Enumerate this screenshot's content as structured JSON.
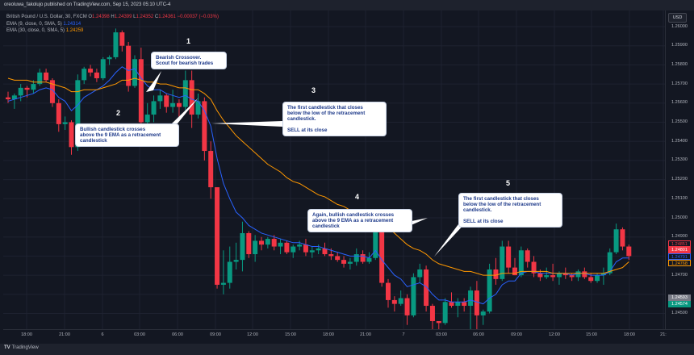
{
  "header": {
    "publisher_line": "oreoluwa_fakolujo published on TradingView.com, Sep 15, 2023 05:10 UTC-4"
  },
  "legend": {
    "symbol": "British Pound / U.S. Dollar, 30, FXCM",
    "o_label": "O",
    "o": "1.24398",
    "h_label": "H",
    "h": "1.24399",
    "l_label": "L",
    "l": "1.24352",
    "c_label": "C",
    "c": "1.24361",
    "change": "−0.00037 (−0.03%)",
    "ema9_label": "EMA (9, close, 0, SMA, 5)",
    "ema9_value": "1.24314",
    "ema30_label": "EMA (30, close, 0, SMA, 5)",
    "ema30_value": "1.24259"
  },
  "price_scale": {
    "currency": "USD",
    "ticks": [
      "1.26000",
      "1.25900",
      "1.25800",
      "1.25700",
      "1.25600",
      "1.25500",
      "1.25400",
      "1.25300",
      "1.25200",
      "1.25100",
      "1.25000",
      "1.24900",
      "1.24700",
      "1.24500"
    ],
    "badges": [
      {
        "label": "1.24851",
        "kind": "outline-red"
      },
      {
        "label": "1.24801",
        "kind": "solid-red"
      },
      {
        "label": "1.24791",
        "kind": "outline-blue"
      },
      {
        "label": "1.24768",
        "kind": "outline-orange"
      },
      {
        "label": "1.24593",
        "kind": "solid-gray"
      },
      {
        "label": "1.24574",
        "kind": "solid-green"
      }
    ]
  },
  "time_scale": {
    "labels": [
      "18:00",
      "21:00",
      "6",
      "03:00",
      "06:00",
      "09:00",
      "12:00",
      "15:00",
      "18:00",
      "21:00",
      "7",
      "03:00",
      "06:00",
      "09:00",
      "12:00",
      "15:00",
      "18:00",
      "21:"
    ]
  },
  "footer": {
    "logo_mark": "TV",
    "logo_text": "TradingView"
  },
  "annotations": [
    {
      "number": "1",
      "text": "Bearish Crossover.\nScout for bearish trades"
    },
    {
      "number": "2",
      "text": "Bullish candlestick crosses\nabove the 9 EMA as a retracement\ncandlestick"
    },
    {
      "number": "3",
      "text": "The first candlestick that closes\nbelow the low of the retracement\ncandlestick.\n\nSELL at its close"
    },
    {
      "number": "4",
      "text": "Again, bullish candlestick crosses\nabove the 9 EMA as a retracement\ncandlestick"
    },
    {
      "number": "5",
      "text": "The first candlestick that closes\nbelow the low of the retracement\ncandlestick.\n\nSELL at its close"
    }
  ],
  "colors": {
    "background": "#131722",
    "grid": "#1e2230",
    "up": "#089981",
    "down": "#f23645",
    "ema9": "#2962ff",
    "ema30": "#ff9800",
    "callout_bg": "#ffffff",
    "callout_text": "#1e3a8a"
  },
  "chart_data": {
    "type": "candlestick",
    "title": "British Pound / U.S. Dollar, 30, FXCM",
    "xlabel": "",
    "ylabel": "USD",
    "ylim": [
      1.2442,
      1.2605
    ],
    "grid": true,
    "x_ticks": [
      "18:00",
      "21:00",
      "6",
      "03:00",
      "06:00",
      "09:00",
      "12:00",
      "15:00",
      "18:00",
      "21:00",
      "7",
      "03:00",
      "06:00",
      "09:00",
      "12:00",
      "15:00",
      "18:00",
      "21:"
    ],
    "candles": [
      [
        1.2563,
        1.2566,
        1.256,
        1.2562
      ],
      [
        1.2562,
        1.2565,
        1.2557,
        1.2564
      ],
      [
        1.2564,
        1.257,
        1.2561,
        1.2568
      ],
      [
        1.2568,
        1.2569,
        1.2563,
        1.2567
      ],
      [
        1.2567,
        1.2572,
        1.2565,
        1.257
      ],
      [
        1.257,
        1.2578,
        1.2569,
        1.2576
      ],
      [
        1.2576,
        1.2578,
        1.2571,
        1.2572
      ],
      [
        1.2572,
        1.2573,
        1.2558,
        1.256
      ],
      [
        1.256,
        1.2562,
        1.2545,
        1.2549
      ],
      [
        1.2549,
        1.2553,
        1.2546,
        1.255
      ],
      [
        1.255,
        1.2551,
        1.2533,
        1.2537
      ],
      [
        1.2537,
        1.2575,
        1.2535,
        1.2572
      ],
      [
        1.2572,
        1.2579,
        1.257,
        1.2578
      ],
      [
        1.2578,
        1.258,
        1.2574,
        1.2576
      ],
      [
        1.2576,
        1.2578,
        1.2571,
        1.2573
      ],
      [
        1.2573,
        1.2584,
        1.2572,
        1.2583
      ],
      [
        1.2583,
        1.2585,
        1.258,
        1.2584
      ],
      [
        1.2584,
        1.2599,
        1.2583,
        1.2597
      ],
      [
        1.2597,
        1.2598,
        1.2587,
        1.259
      ],
      [
        1.259,
        1.2592,
        1.2566,
        1.2569
      ],
      [
        1.2569,
        1.2585,
        1.2568,
        1.2583
      ],
      [
        1.2583,
        1.2589,
        1.2546,
        1.255
      ],
      [
        1.255,
        1.256,
        1.2546,
        1.2554
      ],
      [
        1.2554,
        1.2564,
        1.255,
        1.2561
      ],
      [
        1.2561,
        1.2567,
        1.2557,
        1.2564
      ],
      [
        1.2564,
        1.2565,
        1.2555,
        1.2558
      ],
      [
        1.2558,
        1.2567,
        1.2555,
        1.256
      ],
      [
        1.256,
        1.2562,
        1.2552,
        1.2558
      ],
      [
        1.2558,
        1.2577,
        1.2556,
        1.2572
      ],
      [
        1.2572,
        1.2577,
        1.2547,
        1.2554
      ],
      [
        1.2554,
        1.2565,
        1.2552,
        1.2561
      ],
      [
        1.2561,
        1.2563,
        1.253,
        1.2535
      ],
      [
        1.2535,
        1.254,
        1.251,
        1.2516
      ],
      [
        1.2516,
        1.2516,
        1.2463,
        1.2465
      ],
      [
        1.2465,
        1.2483,
        1.246,
        1.2466
      ],
      [
        1.2466,
        1.2485,
        1.2463,
        1.2477
      ],
      [
        1.2477,
        1.2487,
        1.2473,
        1.2478
      ],
      [
        1.2478,
        1.2498,
        1.2472,
        1.2492
      ],
      [
        1.2492,
        1.2493,
        1.2479,
        1.2481
      ],
      [
        1.2481,
        1.2491,
        1.2477,
        1.2488
      ],
      [
        1.2488,
        1.249,
        1.2483,
        1.2486
      ],
      [
        1.2486,
        1.249,
        1.2484,
        1.2489
      ],
      [
        1.2489,
        1.2491,
        1.2483,
        1.2485
      ],
      [
        1.2485,
        1.2489,
        1.2481,
        1.2487
      ],
      [
        1.2487,
        1.2488,
        1.2481,
        1.2482
      ],
      [
        1.2482,
        1.2486,
        1.2479,
        1.2485
      ],
      [
        1.2485,
        1.2488,
        1.2483,
        1.2486
      ],
      [
        1.2486,
        1.2489,
        1.248,
        1.2482
      ],
      [
        1.2482,
        1.2485,
        1.2479,
        1.2483
      ],
      [
        1.2483,
        1.2486,
        1.2481,
        1.2484
      ],
      [
        1.2484,
        1.2487,
        1.248,
        1.2481
      ],
      [
        1.2481,
        1.2484,
        1.2478,
        1.248
      ],
      [
        1.248,
        1.2482,
        1.2477,
        1.2478
      ],
      [
        1.2478,
        1.248,
        1.2474,
        1.2476
      ],
      [
        1.2476,
        1.2479,
        1.2473,
        1.2477
      ],
      [
        1.2477,
        1.2484,
        1.2475,
        1.2481
      ],
      [
        1.2481,
        1.2483,
        1.2476,
        1.2477
      ],
      [
        1.2477,
        1.2482,
        1.2476,
        1.2479
      ],
      [
        1.2479,
        1.2496,
        1.2478,
        1.2494
      ],
      [
        1.2494,
        1.2496,
        1.2464,
        1.2466
      ],
      [
        1.2466,
        1.2468,
        1.2453,
        1.2457
      ],
      [
        1.2457,
        1.2459,
        1.2451,
        1.2455
      ],
      [
        1.2455,
        1.2462,
        1.2454,
        1.2458
      ],
      [
        1.2458,
        1.246,
        1.2444,
        1.2449
      ],
      [
        1.2449,
        1.2471,
        1.2448,
        1.2469
      ],
      [
        1.2469,
        1.2476,
        1.2466,
        1.2473
      ],
      [
        1.2473,
        1.2475,
        1.2451,
        1.2454
      ],
      [
        1.2454,
        1.2455,
        1.2441,
        1.2446
      ],
      [
        1.2446,
        1.2446,
        1.244,
        1.2445
      ],
      [
        1.2445,
        1.2458,
        1.2444,
        1.2456
      ],
      [
        1.2456,
        1.2461,
        1.2453,
        1.2454
      ],
      [
        1.2454,
        1.2458,
        1.2448,
        1.2456
      ],
      [
        1.2456,
        1.2458,
        1.2451,
        1.2454
      ],
      [
        1.2454,
        1.2464,
        1.244,
        1.2462
      ],
      [
        1.2462,
        1.2467,
        1.244,
        1.2449
      ],
      [
        1.2449,
        1.2452,
        1.2444,
        1.2451
      ],
      [
        1.2451,
        1.2476,
        1.245,
        1.2473
      ],
      [
        1.2473,
        1.2479,
        1.2465,
        1.2468
      ],
      [
        1.2468,
        1.2488,
        1.2467,
        1.2485
      ],
      [
        1.2485,
        1.2488,
        1.2471,
        1.2474
      ],
      [
        1.2474,
        1.2479,
        1.247,
        1.247
      ],
      [
        1.247,
        1.2485,
        1.2469,
        1.2483
      ],
      [
        1.2483,
        1.2484,
        1.2474,
        1.2477
      ],
      [
        1.2477,
        1.248,
        1.2469,
        1.2471
      ],
      [
        1.2471,
        1.2473,
        1.2467,
        1.2469
      ],
      [
        1.2469,
        1.2474,
        1.2468,
        1.247
      ],
      [
        1.247,
        1.2476,
        1.2467,
        1.2469
      ],
      [
        1.2469,
        1.2472,
        1.2465,
        1.2471
      ],
      [
        1.2471,
        1.2474,
        1.2468,
        1.247
      ],
      [
        1.247,
        1.2471,
        1.2467,
        1.2469
      ],
      [
        1.2469,
        1.2473,
        1.2467,
        1.2472
      ],
      [
        1.2472,
        1.2474,
        1.2468,
        1.2469
      ],
      [
        1.2469,
        1.2471,
        1.2466,
        1.2467
      ],
      [
        1.2467,
        1.2471,
        1.2466,
        1.247
      ],
      [
        1.247,
        1.2474,
        1.2465,
        1.2471
      ],
      [
        1.2471,
        1.2484,
        1.247,
        1.2482
      ],
      [
        1.2482,
        1.2497,
        1.2481,
        1.2494
      ],
      [
        1.2494,
        1.2495,
        1.2483,
        1.2485
      ],
      [
        1.2485,
        1.2486,
        1.2478,
        1.248
      ]
    ],
    "series": [
      {
        "name": "EMA 9",
        "color": "#2962ff",
        "values": [
          1.2561,
          1.2562,
          1.2563,
          1.2564,
          1.2565,
          1.2567,
          1.2568,
          1.2567,
          1.2563,
          1.2561,
          1.2556,
          1.2559,
          1.2563,
          1.2565,
          1.2567,
          1.2569,
          1.2572,
          1.2576,
          1.2579,
          1.2577,
          1.2578,
          1.2573,
          1.2569,
          1.2567,
          1.2567,
          1.2565,
          1.2564,
          1.2563,
          1.2564,
          1.2562,
          1.2561,
          1.2556,
          1.2548,
          1.2531,
          1.2518,
          1.251,
          1.2503,
          1.25,
          1.2496,
          1.2494,
          1.2492,
          1.2491,
          1.249,
          1.2489,
          1.2488,
          1.2487,
          1.2487,
          1.2486,
          1.2485,
          1.2485,
          1.2484,
          1.2483,
          1.2482,
          1.2481,
          1.248,
          1.248,
          1.248,
          1.2479,
          1.2483,
          1.2478,
          1.2474,
          1.247,
          1.2468,
          1.2464,
          1.2465,
          1.2466,
          1.2464,
          1.246,
          1.2457,
          1.2457,
          1.2456,
          1.2456,
          1.2456,
          1.2457,
          1.2456,
          1.2455,
          1.2458,
          1.246,
          1.2465,
          1.2467,
          1.2467,
          1.2471,
          1.2472,
          1.2472,
          1.2471,
          1.2471,
          1.2471,
          1.2471,
          1.2471,
          1.247,
          1.2471,
          1.2471,
          1.247,
          1.247,
          1.247,
          1.2472,
          1.2477,
          1.2479,
          1.2479
        ]
      },
      {
        "name": "EMA 30",
        "color": "#ff9800",
        "values": [
          1.2573,
          1.2572,
          1.2572,
          1.2572,
          1.2571,
          1.2571,
          1.2571,
          1.257,
          1.2569,
          1.2568,
          1.2566,
          1.2566,
          1.2567,
          1.2567,
          1.2567,
          1.2568,
          1.2569,
          1.257,
          1.2572,
          1.2572,
          1.2573,
          1.2572,
          1.2571,
          1.2571,
          1.257,
          1.257,
          1.2569,
          1.2568,
          1.2568,
          1.2567,
          1.2567,
          1.2565,
          1.2562,
          1.2556,
          1.2551,
          1.2547,
          1.2543,
          1.254,
          1.2537,
          1.2534,
          1.2531,
          1.2528,
          1.2526,
          1.2524,
          1.2521,
          1.2519,
          1.2518,
          1.2516,
          1.2514,
          1.2512,
          1.2511,
          1.2509,
          1.2507,
          1.2506,
          1.2504,
          1.2503,
          1.2502,
          1.2501,
          1.25,
          1.2498,
          1.2495,
          1.2492,
          1.2489,
          1.2486,
          1.2484,
          1.2483,
          1.2481,
          1.2478,
          1.2476,
          1.2475,
          1.2474,
          1.2473,
          1.2472,
          1.2472,
          1.2471,
          1.247,
          1.247,
          1.247,
          1.2471,
          1.2471,
          1.2471,
          1.2472,
          1.2472,
          1.2472,
          1.2472,
          1.2472,
          1.2471,
          1.2471,
          1.2471,
          1.2471,
          1.2471,
          1.2471,
          1.2471,
          1.2471,
          1.2471,
          1.2472,
          1.2473,
          1.2474,
          1.2477
        ]
      }
    ]
  }
}
